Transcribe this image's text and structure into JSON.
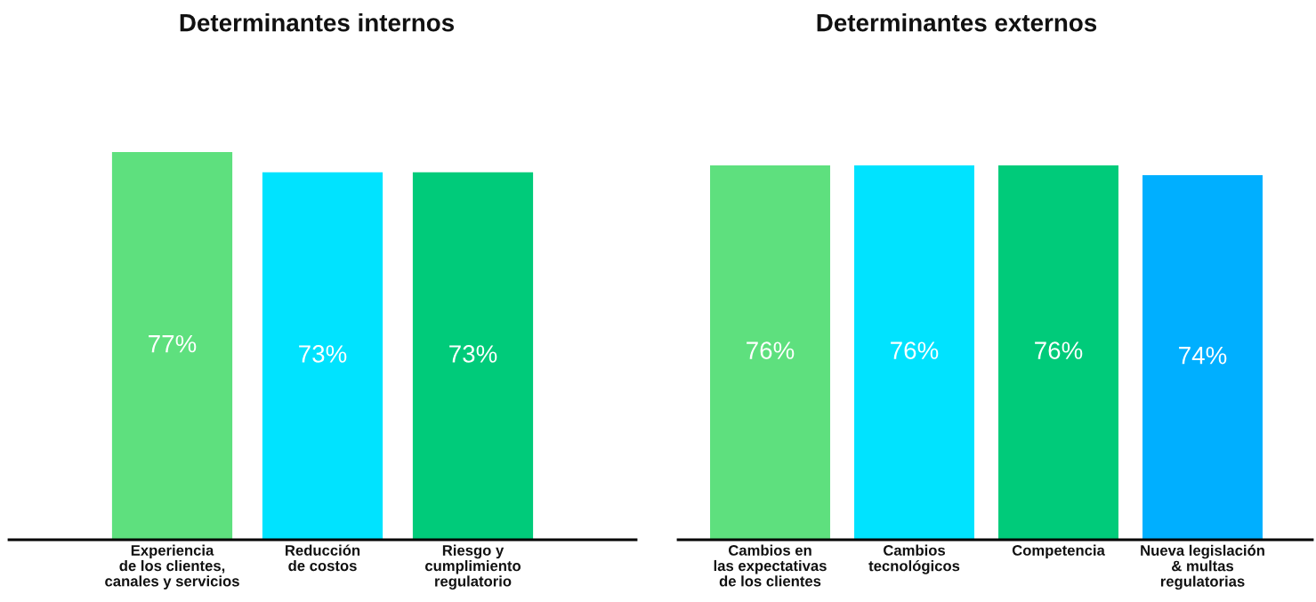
{
  "chart_data": [
    {
      "type": "bar",
      "title": "Determinantes internos",
      "categories": [
        "Experiencia\nde los clientes,\ncanales y servicios",
        "Reducción\nde costos",
        "Riesgo y\ncumplimiento\nregulatorio"
      ],
      "values": [
        77,
        73,
        73
      ],
      "value_labels": [
        "77%",
        "73%",
        "73%"
      ],
      "colors": [
        "#5ee07e",
        "#00e3ff",
        "#00cb7a"
      ],
      "tick_labels": "x"
    },
    {
      "type": "bar",
      "title": "Determinantes externos",
      "categories": [
        "Cambios en\nlas expectativas\nde los clientes",
        "Cambios\ntecnológicos",
        "Competencia",
        "Nueva legislación\n& multas\nregulatorias"
      ],
      "values": [
        76,
        76,
        76,
        74
      ],
      "value_labels": [
        "76%",
        "76%",
        "76%",
        "74%"
      ],
      "colors": [
        "#5ee07e",
        "#00e3ff",
        "#00cb7a",
        "#00afff"
      ],
      "tick_labels": "x"
    }
  ]
}
